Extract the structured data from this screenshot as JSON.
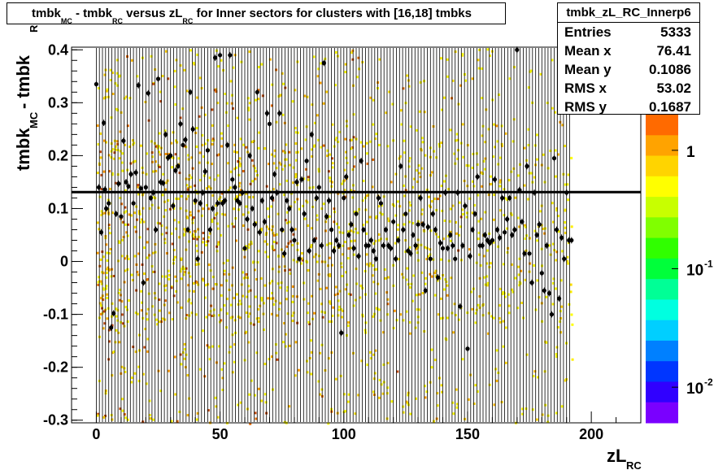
{
  "title": {
    "parts": [
      "tmbk",
      "MC",
      " - tmbk",
      "RC",
      " versus zL",
      "RC",
      " for Inner sectors for clusters with [16,18] tmbks"
    ]
  },
  "stats": {
    "name": "tmbk_zL_RC_Innerp6",
    "rows": [
      {
        "label": "Entries",
        "value": "5333"
      },
      {
        "label": "Mean x",
        "value": "76.41"
      },
      {
        "label": "Mean y",
        "value": "0.1086"
      },
      {
        "label": "RMS x",
        "value": "53.02"
      },
      {
        "label": "RMS y",
        "value": "0.1687"
      }
    ]
  },
  "chart_data": {
    "type": "heatmap",
    "xlabel": {
      "main": "zL",
      "sub": "RC"
    },
    "ylabel": {
      "main": "tmbk",
      "sub1": "MC",
      "mid": " - tmbk",
      "sub2": "RC"
    },
    "xlim": [
      -10,
      220
    ],
    "ylim": [
      -0.305,
      0.405
    ],
    "x_ticks": [
      0,
      50,
      100,
      150,
      200
    ],
    "x_tick_labels": [
      "0",
      "50",
      "100",
      "150",
      "200"
    ],
    "y_ticks": [
      -0.3,
      -0.2,
      -0.1,
      0,
      0.1,
      0.2,
      0.3,
      0.4
    ],
    "y_tick_labels": [
      "-0.3",
      "-0.2",
      "-0.1",
      "0",
      "0.1",
      "0.2",
      "0.3",
      "0.4"
    ],
    "fit_line_y": 0.131,
    "colorbar": {
      "scale": "log",
      "range": [
        0.005,
        2
      ],
      "ticks": [
        1,
        0.1,
        0.01
      ],
      "tick_labels": [
        {
          "base": "1",
          "exp": ""
        },
        {
          "base": "10",
          "exp": "-1"
        },
        {
          "base": "10",
          "exp": "-2"
        }
      ],
      "colors": [
        "#ff6a00",
        "#ffa300",
        "#ffd400",
        "#ffff00",
        "#c8ff00",
        "#80ff00",
        "#30ff00",
        "#00ff3a",
        "#00ff96",
        "#00ffe0",
        "#00cfff",
        "#0080ff",
        "#0036ff",
        "#3000ff",
        "#7a00ff"
      ]
    },
    "profile_x_range": [
      0,
      192
    ],
    "profile_bin_width": 1.25,
    "profile_points": [
      [
        0,
        0.335
      ],
      [
        1,
        0.14
      ],
      [
        2,
        0.055
      ],
      [
        3,
        0.262
      ],
      [
        3.5,
        0.136
      ],
      [
        4,
        0.1
      ],
      [
        5,
        0.11
      ],
      [
        6,
        -0.125
      ],
      [
        7,
        -0.098
      ],
      [
        8,
        0.09
      ],
      [
        9,
        0.147
      ],
      [
        10,
        0.085
      ],
      [
        11,
        0.228
      ],
      [
        12,
        0.15
      ],
      [
        13,
        0.142
      ],
      [
        14,
        0.165
      ],
      [
        15,
        0.11
      ],
      [
        16,
        0.168
      ],
      [
        17,
        0.333
      ],
      [
        18,
        0.138
      ],
      [
        19,
        -0.04
      ],
      [
        20,
        0.14
      ],
      [
        21,
        0.318
      ],
      [
        22,
        0.12
      ],
      [
        23,
        0.13
      ],
      [
        24,
        0.06
      ],
      [
        25,
        0.345
      ],
      [
        26,
        0.15
      ],
      [
        27,
        0.148
      ],
      [
        28,
        0.24
      ],
      [
        29,
        0.196
      ],
      [
        30,
        0.2
      ],
      [
        31,
        0.105
      ],
      [
        32,
        0.172
      ],
      [
        33,
        0.18
      ],
      [
        34,
        0.26
      ],
      [
        35,
        0.22
      ],
      [
        36,
        0.23
      ],
      [
        37,
        0.06
      ],
      [
        38,
        0.32
      ],
      [
        39,
        0.25
      ],
      [
        40,
        0.115
      ],
      [
        41,
        0.005
      ],
      [
        42,
        0.11
      ],
      [
        43,
        0.13
      ],
      [
        44,
        0.17
      ],
      [
        45,
        0.21
      ],
      [
        46,
        0.06
      ],
      [
        47,
        0.1
      ],
      [
        48,
        0.385
      ],
      [
        49,
        0.11
      ],
      [
        50,
        0.39
      ],
      [
        51,
        0.11
      ],
      [
        52,
        0.115
      ],
      [
        53,
        0.22
      ],
      [
        54,
        0.39
      ],
      [
        55,
        0.155
      ],
      [
        56,
        0.14
      ],
      [
        57,
        0.115
      ],
      [
        58,
        0.11
      ],
      [
        59,
        0.13
      ],
      [
        60,
        0.025
      ],
      [
        61,
        0.08
      ],
      [
        62,
        0.2
      ],
      [
        63,
        0.1
      ],
      [
        64,
        0.07
      ],
      [
        65,
        0.32
      ],
      [
        66,
        0.055
      ],
      [
        67,
        0.115
      ],
      [
        68,
        0.075
      ],
      [
        69,
        0.28
      ],
      [
        70,
        0.26
      ],
      [
        71,
        0.12
      ],
      [
        72,
        0.165
      ],
      [
        73,
        0.13
      ],
      [
        74,
        0.28
      ],
      [
        75,
        0.06
      ],
      [
        76,
        0.015
      ],
      [
        77,
        0.115
      ],
      [
        78,
        0.1
      ],
      [
        79,
        0.06
      ],
      [
        80,
        0.04
      ],
      [
        81,
        0.15
      ],
      [
        82,
        0.005
      ],
      [
        83,
        0.155
      ],
      [
        84,
        0.09
      ],
      [
        85,
        0.19
      ],
      [
        86,
        0.02
      ],
      [
        87,
        0.24
      ],
      [
        88,
        0.04
      ],
      [
        89,
        0.12
      ],
      [
        90,
        0.14
      ],
      [
        91,
        0.03
      ],
      [
        92,
        0.375
      ],
      [
        93,
        0.085
      ],
      [
        94,
        0.115
      ],
      [
        95,
        0.06
      ],
      [
        96,
        0.02
      ],
      [
        97,
        0.04
      ],
      [
        98,
        0.03
      ],
      [
        99,
        -0.135
      ],
      [
        100,
        0.12
      ],
      [
        101,
        0.16
      ],
      [
        102,
        0.05
      ],
      [
        103,
        0.07
      ],
      [
        104,
        0.025
      ],
      [
        105,
        0.09
      ],
      [
        106,
        0.01
      ],
      [
        107,
        0.19
      ],
      [
        108,
        0.06
      ],
      [
        109,
        0.03
      ],
      [
        110,
        0.03
      ],
      [
        111,
        0.04
      ],
      [
        112,
        0.02
      ],
      [
        113,
        0.005
      ],
      [
        114,
        0.12
      ],
      [
        115,
        0.11
      ],
      [
        116,
        0.03
      ],
      [
        117,
        0.06
      ],
      [
        118,
        0.03
      ],
      [
        119,
        0.025
      ],
      [
        120,
        0.075
      ],
      [
        121,
        0.005
      ],
      [
        122,
        0.04
      ],
      [
        123,
        0.18
      ],
      [
        124,
        0.06
      ],
      [
        125,
        0.09
      ],
      [
        126,
        0.02
      ],
      [
        127,
        0.015
      ],
      [
        128,
        0.05
      ],
      [
        129,
        0.03
      ],
      [
        130,
        0.07
      ],
      [
        131,
        0.12
      ],
      [
        132,
        0.07
      ],
      [
        133,
        -0.055
      ],
      [
        134,
        0.065
      ],
      [
        135,
        0.005
      ],
      [
        136,
        0.09
      ],
      [
        137,
        0.06
      ],
      [
        138,
        -0.03
      ],
      [
        139,
        0.035
      ],
      [
        140,
        0.025
      ],
      [
        141,
        0.13
      ],
      [
        142,
        0.025
      ],
      [
        143,
        0.05
      ],
      [
        144,
        0.03
      ],
      [
        145,
        0.005
      ],
      [
        146,
        0.13
      ],
      [
        147,
        -0.085
      ],
      [
        148,
        0.03
      ],
      [
        149,
        0.105
      ],
      [
        150,
        -0.165
      ],
      [
        151,
        0.01
      ],
      [
        152,
        0.06
      ],
      [
        153,
        0.09
      ],
      [
        154,
        0.16
      ],
      [
        155,
        0.03
      ],
      [
        156,
        0.03
      ],
      [
        157,
        0.05
      ],
      [
        158,
        0.04
      ],
      [
        159,
        0.035
      ],
      [
        160,
        0.04
      ],
      [
        161,
        0.155
      ],
      [
        162,
        0.06
      ],
      [
        163,
        0.045
      ],
      [
        164,
        0.12
      ],
      [
        165,
        0.055
      ],
      [
        166,
        0.08
      ],
      [
        167,
        0.12
      ],
      [
        168,
        0.05
      ],
      [
        169,
        0.06
      ],
      [
        170,
        0.4
      ],
      [
        171,
        0.135
      ],
      [
        172,
        0.075
      ],
      [
        173,
        0.015
      ],
      [
        174,
        0.18
      ],
      [
        175,
        0.015
      ],
      [
        176,
        -0.04
      ],
      [
        177,
        0.13
      ],
      [
        178,
        0.05
      ],
      [
        179,
        0.07
      ],
      [
        180,
        -0.022
      ],
      [
        181,
        -0.055
      ],
      [
        182,
        0.03
      ],
      [
        183,
        -0.06
      ],
      [
        184,
        -0.1
      ],
      [
        185,
        0.195
      ],
      [
        186,
        0.06
      ],
      [
        187,
        -0.07
      ],
      [
        188,
        0.045
      ],
      [
        189,
        0.005
      ],
      [
        190,
        0.13
      ],
      [
        191,
        0.04
      ],
      [
        192,
        0.04
      ]
    ],
    "error_bar_half_height": 0.006
  }
}
